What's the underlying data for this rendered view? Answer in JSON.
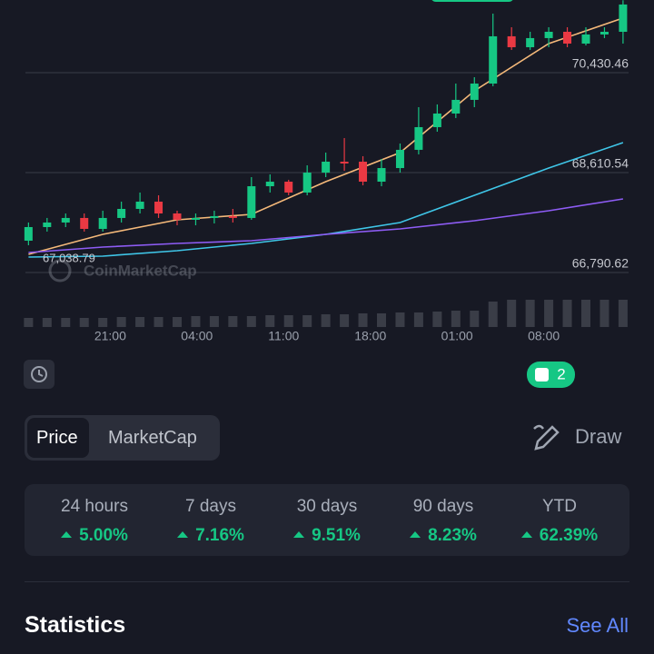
{
  "chart_data": {
    "type": "candlestick",
    "x": [
      0,
      1.5,
      3,
      4.5,
      6,
      7.5,
      9,
      10.5,
      12,
      13.5,
      15,
      16.5,
      18,
      19.5,
      21,
      22.5,
      24,
      25.5,
      27,
      28.5,
      30,
      31.5,
      33,
      34.5,
      36,
      37.5,
      39,
      40.5,
      42,
      43.5,
      45,
      46.5,
      48
    ],
    "open": [
      67370,
      67618,
      67701,
      67784,
      67585,
      67784,
      67949,
      68081,
      67866,
      67751,
      67784,
      67817,
      67784,
      68362,
      68445,
      68247,
      68610,
      68809,
      68809,
      68445,
      68693,
      69025,
      69438,
      69686,
      69935,
      70232,
      71093,
      70894,
      71060,
      71175,
      70960,
      71126,
      71175
    ],
    "high": [
      67701,
      67784,
      67866,
      67866,
      67916,
      68081,
      68247,
      68197,
      67916,
      67866,
      67916,
      67949,
      68528,
      68578,
      68479,
      68743,
      68975,
      69239,
      68909,
      68859,
      69140,
      69802,
      69852,
      70232,
      70348,
      71506,
      71258,
      71175,
      71258,
      71258,
      71258,
      71258,
      71750
    ],
    "low": [
      67287,
      67535,
      67618,
      67535,
      67535,
      67701,
      67866,
      67784,
      67651,
      67651,
      67684,
      67701,
      67751,
      68247,
      68197,
      68197,
      68528,
      68644,
      68379,
      68362,
      68610,
      68942,
      69355,
      69604,
      69802,
      70183,
      70845,
      70845,
      70894,
      70894,
      70927,
      71060,
      70960
    ],
    "close": [
      67618,
      67701,
      67784,
      67585,
      67784,
      67949,
      68081,
      67866,
      67751,
      67784,
      67817,
      67784,
      68362,
      68445,
      68247,
      68610,
      68809,
      68776,
      68445,
      68693,
      69025,
      69438,
      69686,
      69935,
      70232,
      71093,
      70894,
      71060,
      71175,
      70960,
      71126,
      71175,
      71672
    ],
    "up_color": "#16c784",
    "down_color": "#ea3943",
    "series": [
      {
        "color": "#f5b97a",
        "x": [
          0,
          6,
          12,
          18,
          24,
          30,
          36,
          42,
          48
        ],
        "values": [
          67122,
          67486,
          67751,
          67850,
          68445,
          68975,
          70100,
          70960,
          71424
        ]
      },
      {
        "color": "#3fc6e8",
        "x": [
          0,
          6,
          12,
          18,
          24,
          30,
          36,
          42,
          48
        ],
        "values": [
          67072,
          67088,
          67188,
          67320,
          67486,
          67701,
          68197,
          68693,
          69157
        ]
      },
      {
        "color": "#8e5cf5",
        "x": [
          0,
          6,
          12,
          18,
          24,
          30,
          36,
          42,
          48
        ],
        "values": [
          67155,
          67254,
          67320,
          67370,
          67486,
          67585,
          67734,
          67916,
          68131
        ]
      }
    ],
    "xlim": [
      -2.3,
      50.5
    ],
    "xticks": [
      {
        "value": 6.6,
        "label": "21:00"
      },
      {
        "value": 13.6,
        "label": "04:00"
      },
      {
        "value": 20.6,
        "label": "11:00"
      },
      {
        "value": 27.6,
        "label": "18:00"
      },
      {
        "value": 34.6,
        "label": "01:00"
      },
      {
        "value": 41.6,
        "label": "08:00"
      }
    ],
    "ylim": [
      66790.62,
      71754.06
    ],
    "yticks": [
      {
        "value": 66790.62,
        "label": "66,790.62"
      },
      {
        "value": 68610.54,
        "label": "68,610.54"
      },
      {
        "value": 70430.46,
        "label": "70,430.46"
      }
    ],
    "grid": true,
    "annotations": [
      {
        "value": 67038.79,
        "label": "67,038.79"
      }
    ],
    "watermark": "CoinMarketCap",
    "volume": {
      "color": "#3a3d47",
      "ylim": [
        0,
        30
      ],
      "values": [
        10,
        10,
        10,
        10,
        10,
        11,
        11,
        11,
        11,
        12,
        12,
        12,
        12,
        13,
        13,
        13,
        14,
        14,
        15,
        15,
        16,
        16,
        17,
        18,
        18,
        28,
        30,
        30,
        30,
        30,
        30,
        30,
        30
      ]
    }
  },
  "notes_badge": 2,
  "toggle": [
    "Price",
    "MarketCap"
  ],
  "draw": "Draw",
  "performance": [
    {
      "label": "24 hours",
      "value": "5.00%"
    },
    {
      "label": "7 days",
      "value": "7.16%"
    },
    {
      "label": "30 days",
      "value": "9.51%"
    },
    {
      "label": "90 days",
      "value": "8.23%"
    },
    {
      "label": "YTD",
      "value": "62.39%"
    }
  ],
  "statistics": {
    "title": "Statistics",
    "link": "See All"
  }
}
